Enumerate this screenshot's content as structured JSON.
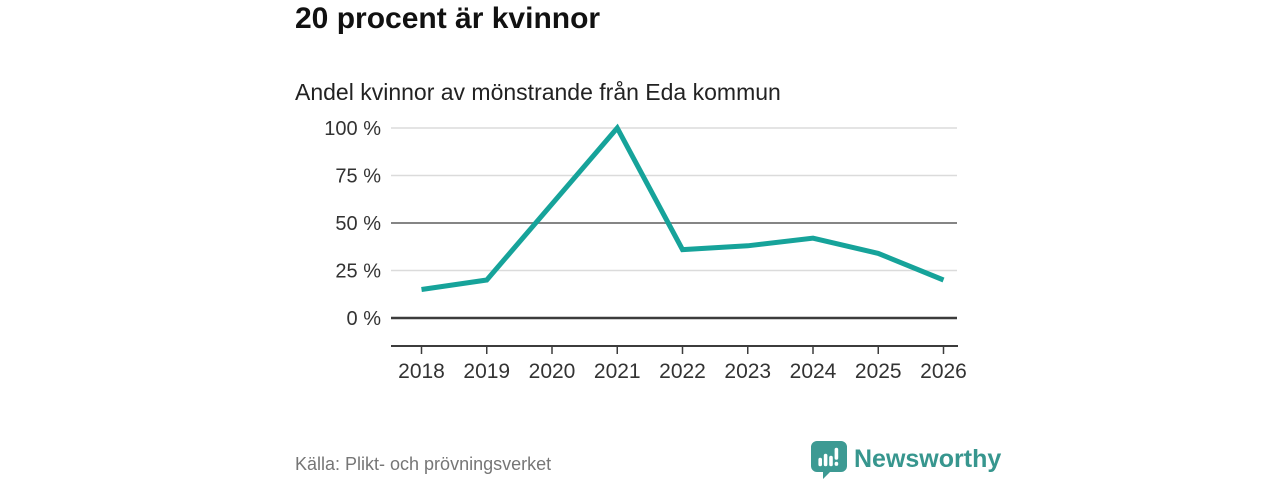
{
  "header": {
    "title": "20 procent är kvinnor",
    "subtitle": "Andel kvinnor av mönstrande från Eda kommun"
  },
  "chart_data": {
    "type": "line",
    "title": "20 procent är kvinnor",
    "subtitle": "Andel kvinnor av mönstrande från Eda kommun",
    "categories": [
      "2018",
      "2019",
      "2020",
      "2021",
      "2022",
      "2023",
      "2024",
      "2025",
      "2026"
    ],
    "series": [
      {
        "name": "Andel kvinnor av mönstrande",
        "values": [
          15,
          20,
          60,
          100,
          36,
          38,
          42,
          34,
          20
        ]
      }
    ],
    "unit": "%",
    "xlabel": "",
    "ylabel": "",
    "ylim": [
      0,
      100
    ],
    "grid": true,
    "legend": "none",
    "yticks": [
      {
        "value": 0,
        "label": "0 %",
        "style": "axis"
      },
      {
        "value": 25,
        "label": "25 %",
        "style": "light"
      },
      {
        "value": 50,
        "label": "50 %",
        "style": "strong"
      },
      {
        "value": 75,
        "label": "75 %",
        "style": "light"
      },
      {
        "value": 100,
        "label": "100 %",
        "style": "light"
      }
    ],
    "line_color": "#16a39a"
  },
  "footer": {
    "source": "Källa: Plikt- och prövningsverket",
    "brand": "Newsworthy"
  },
  "colors": {
    "accent": "#16a39a",
    "brand_teal": "#37968e",
    "brand_icon": "#3d9a93",
    "text_dark": "#111111",
    "text_axis": "#333333",
    "grid_light": "#dbdbdb",
    "grid_strong": "#858585",
    "axis_dark": "#3c3c3c"
  }
}
